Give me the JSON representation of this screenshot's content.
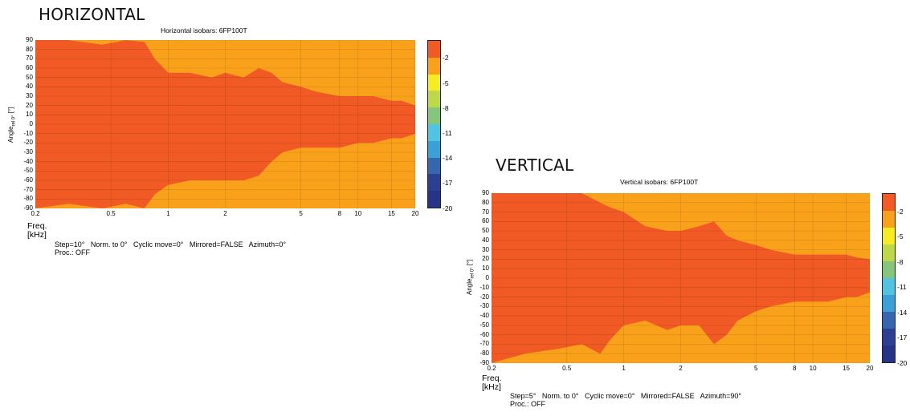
{
  "headings": {
    "left": "HORIZONTAL",
    "right": "VERTICAL"
  },
  "colors": {
    "levels": [
      "#f15a24",
      "#f9a11b",
      "#f7ec23",
      "#bfd84a",
      "#86c57c",
      "#52c3e0",
      "#3ba0d8",
      "#3766b1",
      "#2b3f93",
      "#263387"
    ]
  },
  "chart_data": [
    {
      "type": "heatmap",
      "title": "Horizontal isobars: 6FP100T",
      "xlabel": "Freq.",
      "xunit": "[kHz]",
      "ylabel": "Angle",
      "ylabel_sub": "rel 0°",
      "yunit": "[°]",
      "x_scale": "log",
      "xlim": [
        0.2,
        20
      ],
      "ylim": [
        -90,
        90
      ],
      "x_ticks": [
        "0.2",
        "0.5",
        "1",
        "2",
        "5",
        "8",
        "10",
        "15",
        "20"
      ],
      "y_ticks": [
        "90",
        "80",
        "70",
        "60",
        "50",
        "40",
        "30",
        "20",
        "10",
        "0",
        "-10",
        "-20",
        "-30",
        "-40",
        "-50",
        "-60",
        "-70",
        "-80",
        "-90"
      ],
      "colorbar": {
        "ticks": [
          "-2",
          "-5",
          "-8",
          "-11",
          "-14",
          "-17",
          "-20"
        ]
      },
      "info": {
        "line1": "Step=10°   Norm. to 0°   Cyclic move=0°   Mirrored=FALSE   Azimuth=0°",
        "line2": "Proc.: OFF"
      },
      "boundaries": {
        "freq_khz": [
          0.2,
          0.3,
          0.45,
          0.6,
          0.75,
          0.85,
          1,
          1.3,
          1.7,
          2,
          2.5,
          3,
          3.5,
          4,
          5,
          6,
          8,
          10,
          12,
          15,
          17,
          20
        ],
        "upper_edge_deg": [
          90,
          90,
          85,
          90,
          88,
          70,
          55,
          55,
          50,
          55,
          50,
          60,
          55,
          45,
          40,
          35,
          30,
          30,
          30,
          25,
          25,
          20
        ],
        "lower_edge_deg": [
          -90,
          -85,
          -90,
          -85,
          -90,
          -75,
          -65,
          -60,
          -60,
          -60,
          -60,
          -55,
          -40,
          -30,
          -25,
          -25,
          -25,
          -20,
          -20,
          -15,
          -15,
          -10
        ]
      }
    },
    {
      "type": "heatmap",
      "title": "Vertical isobars: 6FP100T",
      "xlabel": "Freq.",
      "xunit": "[kHz]",
      "ylabel": "Angle",
      "ylabel_sub": "rel 0°",
      "yunit": "[°]",
      "x_scale": "log",
      "xlim": [
        0.2,
        20
      ],
      "ylim": [
        -90,
        90
      ],
      "x_ticks": [
        "0.2",
        "0.5",
        "1",
        "2",
        "5",
        "8",
        "10",
        "15",
        "20"
      ],
      "y_ticks": [
        "90",
        "80",
        "70",
        "60",
        "50",
        "40",
        "30",
        "20",
        "10",
        "0",
        "-10",
        "-20",
        "-30",
        "-40",
        "-50",
        "-60",
        "-70",
        "-80",
        "-90"
      ],
      "colorbar": {
        "ticks": [
          "-2",
          "-5",
          "-8",
          "-11",
          "-14",
          "-17",
          "-20"
        ]
      },
      "info": {
        "line1": "Step=5°   Norm. to 0°   Cyclic move=0°   Mirrored=FALSE   Azimuth=90°",
        "line2": "Proc.: OFF"
      },
      "boundaries": {
        "freq_khz": [
          0.2,
          0.3,
          0.45,
          0.6,
          0.75,
          0.85,
          1,
          1.3,
          1.7,
          2,
          2.5,
          3,
          3.5,
          4,
          5,
          6,
          8,
          10,
          12,
          15,
          17,
          20
        ],
        "upper_edge_deg": [
          90,
          90,
          90,
          90,
          80,
          75,
          70,
          55,
          50,
          50,
          55,
          60,
          45,
          40,
          35,
          30,
          25,
          25,
          25,
          25,
          22,
          20
        ],
        "lower_edge_deg": [
          -90,
          -80,
          -75,
          -70,
          -80,
          -65,
          -50,
          -45,
          -55,
          -50,
          -50,
          -70,
          -60,
          -45,
          -35,
          -30,
          -25,
          -25,
          -25,
          -20,
          -20,
          -15
        ]
      }
    }
  ]
}
